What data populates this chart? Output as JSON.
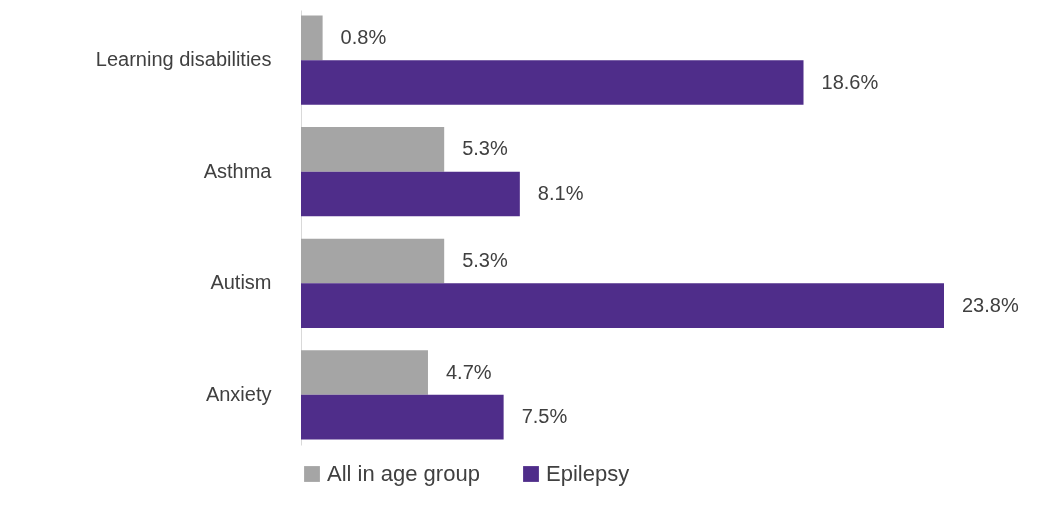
{
  "chart_data": {
    "type": "bar",
    "orientation": "horizontal",
    "categories": [
      "Learning disabilities",
      "Asthma",
      "Autism",
      "Anxiety"
    ],
    "series": [
      {
        "name": "All in age group",
        "color": "#a5a5a5",
        "values": [
          0.8,
          5.3,
          5.3,
          4.7
        ],
        "value_labels": [
          "0.8%",
          "5.3%",
          "5.3%",
          "4.7%"
        ]
      },
      {
        "name": "Epilepsy",
        "color": "#4f2d8a",
        "values": [
          18.6,
          8.1,
          23.8,
          7.5
        ],
        "value_labels": [
          "18.6%",
          "8.1%",
          "23.8%",
          "7.5%"
        ]
      }
    ],
    "legend": "bottom"
  }
}
